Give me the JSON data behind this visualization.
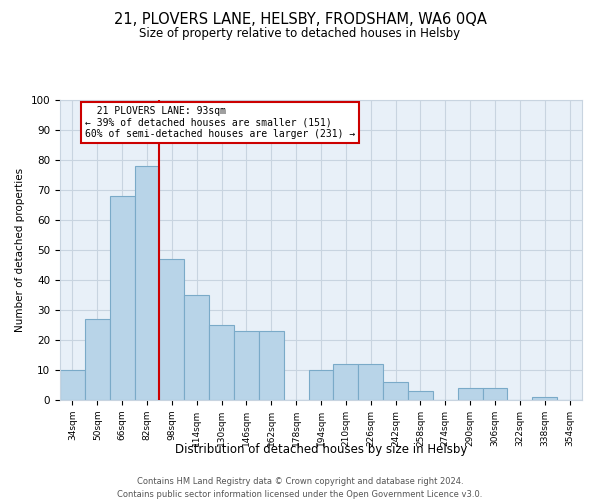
{
  "title": "21, PLOVERS LANE, HELSBY, FRODSHAM, WA6 0QA",
  "subtitle": "Size of property relative to detached houses in Helsby",
  "xlabel": "Distribution of detached houses by size in Helsby",
  "ylabel": "Number of detached properties",
  "categories": [
    "34sqm",
    "50sqm",
    "66sqm",
    "82sqm",
    "98sqm",
    "114sqm",
    "130sqm",
    "146sqm",
    "162sqm",
    "178sqm",
    "194sqm",
    "210sqm",
    "226sqm",
    "242sqm",
    "258sqm",
    "274sqm",
    "290sqm",
    "306sqm",
    "322sqm",
    "338sqm",
    "354sqm"
  ],
  "values": [
    10,
    27,
    68,
    78,
    47,
    35,
    25,
    23,
    23,
    0,
    10,
    12,
    12,
    6,
    3,
    0,
    4,
    4,
    0,
    1,
    0
  ],
  "bar_color": "#b8d4e8",
  "bar_edge_color": "#7aaac8",
  "vline_color": "#cc0000",
  "ylim": [
    0,
    100
  ],
  "annotation_title": "21 PLOVERS LANE: 93sqm",
  "annotation_line1": "← 39% of detached houses are smaller (151)",
  "annotation_line2": "60% of semi-detached houses are larger (231) →",
  "annotation_box_color": "#ffffff",
  "annotation_box_edge": "#cc0000",
  "footer_line1": "Contains HM Land Registry data © Crown copyright and database right 2024.",
  "footer_line2": "Contains public sector information licensed under the Open Government Licence v3.0.",
  "background_color": "#ffffff",
  "plot_bg_color": "#e8f0f8",
  "grid_color": "#c8d4e0"
}
